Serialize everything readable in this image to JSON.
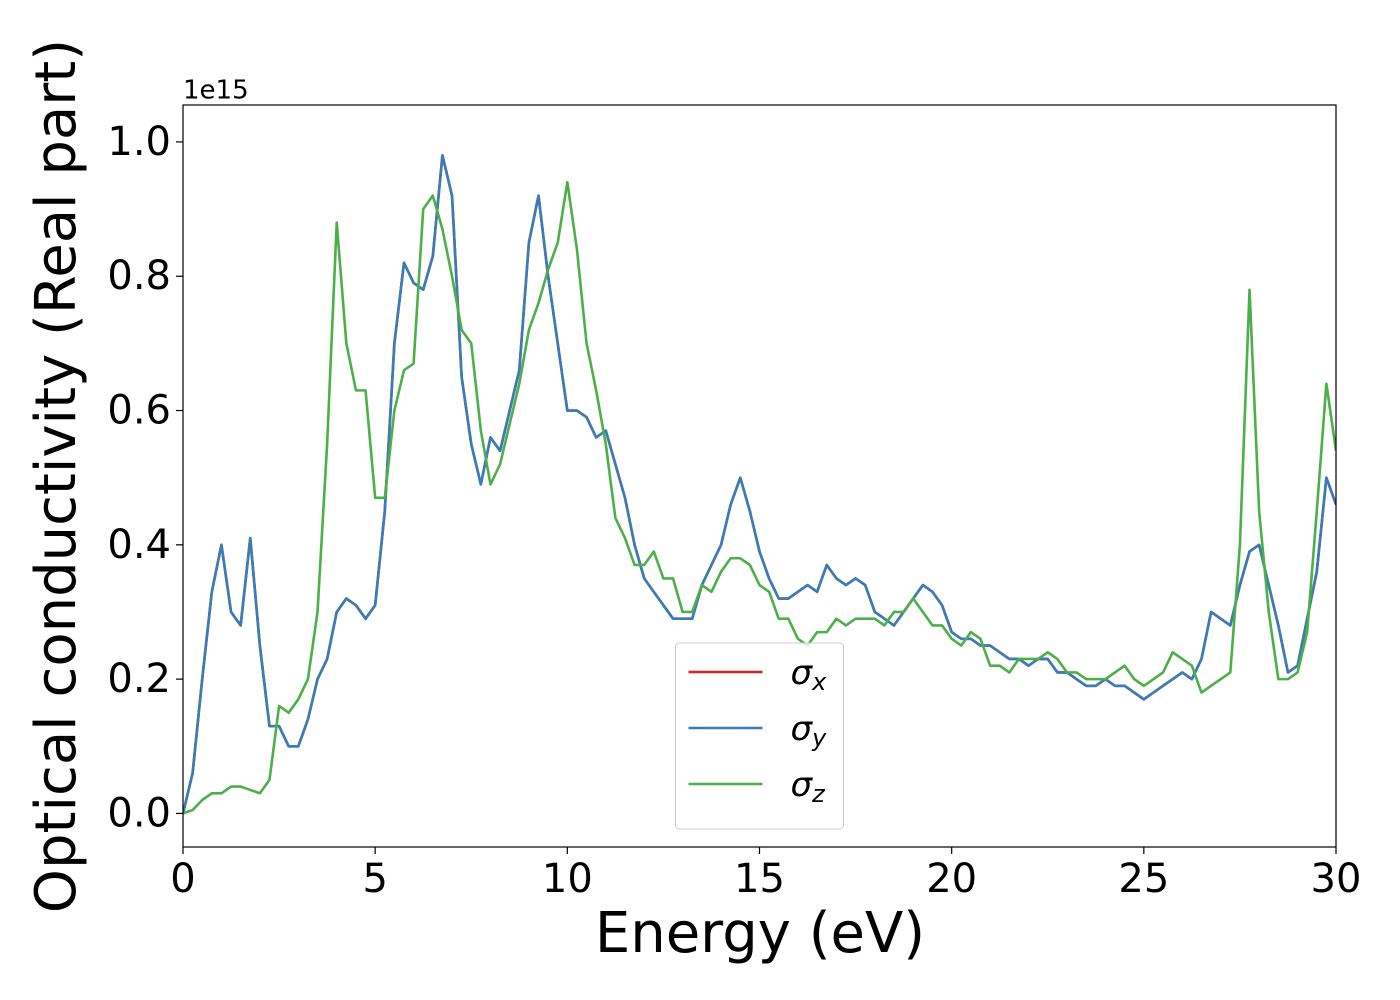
{
  "chart_data": {
    "type": "line",
    "x_label": "Energy (eV)",
    "y_label": "Optical conductivity (Real part)",
    "y_offset_label": "1e15",
    "xlim": [
      0,
      30
    ],
    "ylim": [
      -0.05,
      1.055
    ],
    "xticks": [
      0,
      5,
      10,
      15,
      20,
      25,
      30
    ],
    "yticks": [
      {
        "value": 0,
        "label": "0.0"
      },
      0.2,
      0.4,
      0.6,
      0.8,
      {
        "value": 1,
        "label": "1.0"
      }
    ],
    "grid": false,
    "legend": "lower center",
    "x": [
      0,
      0.25,
      0.5,
      0.75,
      1,
      1.25,
      1.5,
      1.75,
      2,
      2.25,
      2.5,
      2.75,
      3,
      3.25,
      3.5,
      3.75,
      4,
      4.25,
      4.5,
      4.75,
      5,
      5.25,
      5.5,
      5.75,
      6,
      6.25,
      6.5,
      6.75,
      7,
      7.25,
      7.5,
      7.75,
      8,
      8.25,
      8.5,
      8.75,
      9,
      9.25,
      9.5,
      9.75,
      10,
      10.25,
      10.5,
      10.75,
      11,
      11.25,
      11.5,
      11.75,
      12,
      12.25,
      12.5,
      12.75,
      13,
      13.25,
      13.5,
      13.75,
      14,
      14.25,
      14.5,
      14.75,
      15,
      15.25,
      15.5,
      15.75,
      16,
      16.25,
      16.5,
      16.75,
      17,
      17.25,
      17.5,
      17.75,
      18,
      18.25,
      18.5,
      18.75,
      19,
      19.25,
      19.5,
      19.75,
      20,
      20.25,
      20.5,
      20.75,
      21,
      21.25,
      21.5,
      21.75,
      22,
      22.25,
      22.5,
      22.75,
      23,
      23.25,
      23.5,
      23.75,
      24,
      24.25,
      24.5,
      24.75,
      25,
      25.25,
      25.5,
      25.75,
      26,
      26.25,
      26.5,
      26.75,
      27,
      27.25,
      27.5,
      27.75,
      28,
      28.25,
      28.5,
      28.75,
      29,
      29.25,
      29.5,
      29.75,
      30
    ],
    "series": [
      {
        "name": "σx",
        "color": "#e41a1c",
        "values": [
          0,
          0.06,
          0.2,
          0.33,
          0.4,
          0.3,
          0.28,
          0.41,
          0.25,
          0.13,
          0.13,
          0.1,
          0.1,
          0.14,
          0.2,
          0.23,
          0.3,
          0.32,
          0.31,
          0.29,
          0.31,
          0.45,
          0.7,
          0.82,
          0.79,
          0.78,
          0.83,
          0.98,
          0.92,
          0.65,
          0.55,
          0.49,
          0.56,
          0.54,
          0.6,
          0.66,
          0.85,
          0.92,
          0.8,
          0.7,
          0.6,
          0.6,
          0.59,
          0.56,
          0.57,
          0.52,
          0.47,
          0.4,
          0.35,
          0.33,
          0.31,
          0.29,
          0.29,
          0.29,
          0.34,
          0.37,
          0.4,
          0.46,
          0.5,
          0.45,
          0.39,
          0.35,
          0.32,
          0.32,
          0.33,
          0.34,
          0.33,
          0.37,
          0.35,
          0.34,
          0.35,
          0.34,
          0.3,
          0.29,
          0.28,
          0.3,
          0.32,
          0.34,
          0.33,
          0.31,
          0.27,
          0.26,
          0.26,
          0.25,
          0.25,
          0.24,
          0.23,
          0.23,
          0.22,
          0.23,
          0.23,
          0.21,
          0.21,
          0.2,
          0.19,
          0.19,
          0.2,
          0.19,
          0.19,
          0.18,
          0.17,
          0.18,
          0.19,
          0.2,
          0.21,
          0.2,
          0.23,
          0.3,
          0.29,
          0.28,
          0.34,
          0.39,
          0.4,
          0.34,
          0.28,
          0.21,
          0.22,
          0.29,
          0.36,
          0.5,
          0.46
        ]
      },
      {
        "name": "σy",
        "color": "#377eb8",
        "values": [
          0,
          0.06,
          0.2,
          0.33,
          0.4,
          0.3,
          0.28,
          0.41,
          0.25,
          0.13,
          0.13,
          0.1,
          0.1,
          0.14,
          0.2,
          0.23,
          0.3,
          0.32,
          0.31,
          0.29,
          0.31,
          0.45,
          0.7,
          0.82,
          0.79,
          0.78,
          0.83,
          0.98,
          0.92,
          0.65,
          0.55,
          0.49,
          0.56,
          0.54,
          0.6,
          0.66,
          0.85,
          0.92,
          0.8,
          0.7,
          0.6,
          0.6,
          0.59,
          0.56,
          0.57,
          0.52,
          0.47,
          0.4,
          0.35,
          0.33,
          0.31,
          0.29,
          0.29,
          0.29,
          0.34,
          0.37,
          0.4,
          0.46,
          0.5,
          0.45,
          0.39,
          0.35,
          0.32,
          0.32,
          0.33,
          0.34,
          0.33,
          0.37,
          0.35,
          0.34,
          0.35,
          0.34,
          0.3,
          0.29,
          0.28,
          0.3,
          0.32,
          0.34,
          0.33,
          0.31,
          0.27,
          0.26,
          0.26,
          0.25,
          0.25,
          0.24,
          0.23,
          0.23,
          0.22,
          0.23,
          0.23,
          0.21,
          0.21,
          0.2,
          0.19,
          0.19,
          0.2,
          0.19,
          0.19,
          0.18,
          0.17,
          0.18,
          0.19,
          0.2,
          0.21,
          0.2,
          0.23,
          0.3,
          0.29,
          0.28,
          0.34,
          0.39,
          0.4,
          0.34,
          0.28,
          0.21,
          0.22,
          0.29,
          0.36,
          0.5,
          0.46
        ]
      },
      {
        "name": "σz",
        "color": "#4daf4a",
        "values": [
          0,
          0.005,
          0.02,
          0.03,
          0.03,
          0.04,
          0.04,
          0.035,
          0.03,
          0.05,
          0.16,
          0.15,
          0.17,
          0.2,
          0.3,
          0.55,
          0.88,
          0.7,
          0.63,
          0.63,
          0.47,
          0.47,
          0.6,
          0.66,
          0.67,
          0.9,
          0.92,
          0.87,
          0.8,
          0.72,
          0.7,
          0.57,
          0.49,
          0.52,
          0.58,
          0.64,
          0.72,
          0.76,
          0.81,
          0.85,
          0.94,
          0.84,
          0.7,
          0.63,
          0.55,
          0.44,
          0.41,
          0.37,
          0.37,
          0.39,
          0.35,
          0.35,
          0.3,
          0.3,
          0.34,
          0.33,
          0.36,
          0.38,
          0.38,
          0.37,
          0.34,
          0.33,
          0.29,
          0.29,
          0.26,
          0.25,
          0.27,
          0.27,
          0.29,
          0.28,
          0.29,
          0.29,
          0.29,
          0.28,
          0.3,
          0.3,
          0.32,
          0.3,
          0.28,
          0.28,
          0.26,
          0.25,
          0.27,
          0.26,
          0.22,
          0.22,
          0.21,
          0.23,
          0.23,
          0.23,
          0.24,
          0.23,
          0.21,
          0.21,
          0.2,
          0.2,
          0.2,
          0.21,
          0.22,
          0.2,
          0.19,
          0.2,
          0.21,
          0.24,
          0.23,
          0.22,
          0.18,
          0.19,
          0.2,
          0.21,
          0.4,
          0.78,
          0.45,
          0.3,
          0.2,
          0.2,
          0.21,
          0.27,
          0.45,
          0.64,
          0.54
        ]
      }
    ]
  }
}
